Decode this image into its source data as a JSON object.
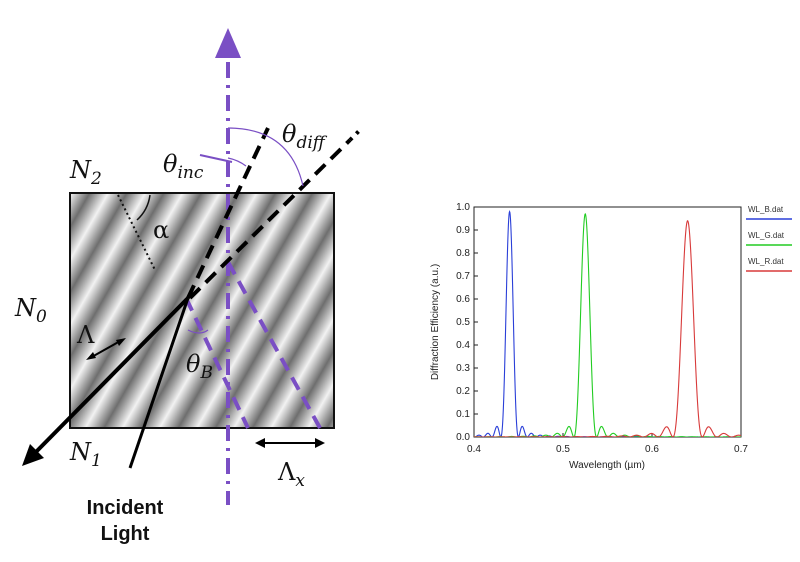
{
  "diagram": {
    "labels": {
      "n2": "N₂",
      "n0": "N₀",
      "n1": "N₁",
      "alpha": "α",
      "lambda": "Λ",
      "lambda_x": "Λₓ",
      "theta_inc": "θᵢₙ꜀",
      "theta_diff": "θ_diff",
      "theta_b": "θ_B",
      "incident_line1": "Incident",
      "incident_line2": "Light"
    },
    "math_parts": {
      "n": "N",
      "n2_sub": "2",
      "n0_sub": "0",
      "n1_sub": "1",
      "lambda_main": "Λ",
      "lambda_x_sub": "x",
      "theta": "θ",
      "inc_sub": "inc",
      "diff_sub": "diff",
      "b_sub": "B"
    },
    "colors": {
      "purple": "#7a4fc4",
      "black": "#000000"
    }
  },
  "chart_data": {
    "type": "line",
    "title": "",
    "xlabel": "Wavelength (µm)",
    "ylabel": "Diffraction Efficiency (a.u.)",
    "xlim": [
      0.4,
      0.7
    ],
    "ylim": [
      0.0,
      1.0
    ],
    "xticks": [
      "0.4",
      "0.5",
      "0.6",
      "0.7"
    ],
    "yticks": [
      "0.0",
      "0.1",
      "0.2",
      "0.3",
      "0.4",
      "0.5",
      "0.6",
      "0.7",
      "0.8",
      "0.9",
      "1.0"
    ],
    "legend_position": "top-right-outside",
    "series": [
      {
        "name": "WL_B.dat",
        "color": "#2a3fd8",
        "peak_x": 0.44,
        "peak_y": 0.98,
        "width": 0.0045
      },
      {
        "name": "WL_G.dat",
        "color": "#22cc22",
        "peak_x": 0.525,
        "peak_y": 0.97,
        "width": 0.0058
      },
      {
        "name": "WL_R.dat",
        "color": "#d83a3a",
        "peak_x": 0.64,
        "peak_y": 0.94,
        "width": 0.0075
      }
    ]
  }
}
